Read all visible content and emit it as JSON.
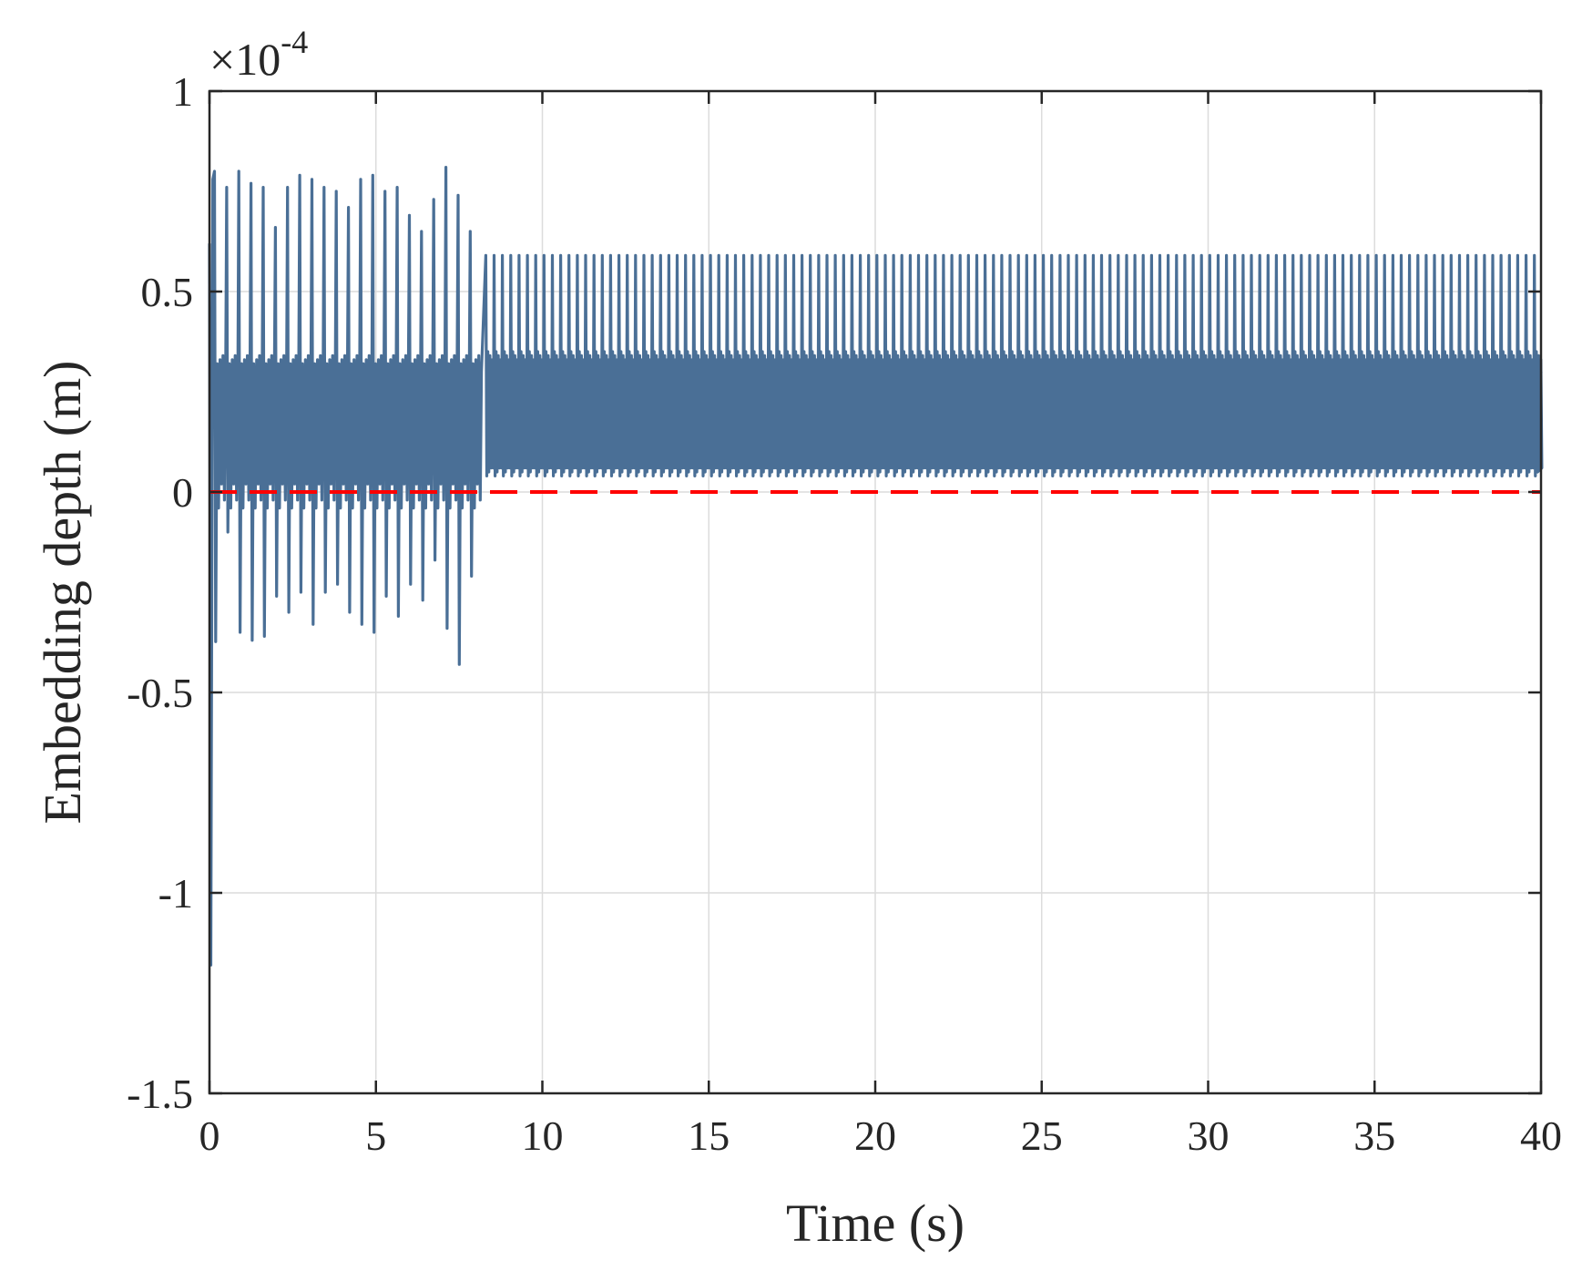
{
  "chart_data": {
    "type": "line",
    "xlabel": "Time (s)",
    "ylabel": "Embedding depth (m)",
    "y_multiplier": {
      "base": "×10",
      "exponent": "-4"
    },
    "xlim": [
      0,
      40
    ],
    "ylim": [
      -1.5,
      1
    ],
    "x_ticks": [
      "0",
      "5",
      "10",
      "15",
      "20",
      "25",
      "30",
      "35",
      "40"
    ],
    "y_ticks": [
      "1",
      "0.5",
      "0",
      "-0.5",
      "-1",
      "-1.5"
    ],
    "grid": true,
    "legend": "none",
    "series": [
      {
        "style": "solid",
        "color": "#4a6f96",
        "description_values": {
          "initial_min": -1.18,
          "transient_end_time": 8.2,
          "transient_peaks_max": [
            0.8,
            0.76,
            0.8,
            0.77,
            0.76,
            0.66,
            0.76,
            0.79,
            0.78,
            0.76,
            0.75,
            0.71,
            0.78,
            0.79,
            0.75,
            0.76,
            0.69,
            0.65,
            0.73,
            0.81,
            0.74,
            0.65
          ],
          "transient_troughs_min": [
            -0.83,
            -0.1,
            -0.35,
            -0.37,
            -0.36,
            -0.26,
            -0.3,
            -0.25,
            -0.33,
            -0.25,
            -0.23,
            -0.3,
            -0.33,
            -0.35,
            -0.26,
            -0.31,
            -0.23,
            -0.27,
            -0.17,
            -0.34,
            -0.43,
            -0.21
          ],
          "steady_state_max": 0.59,
          "steady_state_min": 0.04,
          "steady_state_band": [
            0.05,
            0.35
          ],
          "steady_state_period": 0.25
        }
      },
      {
        "style": "dashed",
        "color": "#ff0000",
        "y_value": 0
      }
    ]
  }
}
